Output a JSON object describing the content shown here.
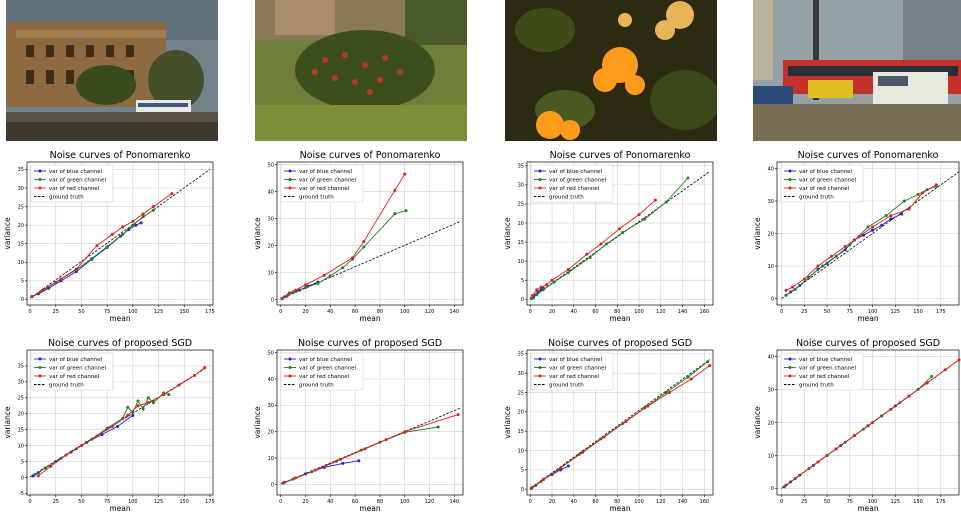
{
  "photos": [
    {
      "name": "photo-building",
      "description_colors": [
        "#6f7f86",
        "#8a6a3f",
        "#b08a55",
        "#3f3a2a"
      ]
    },
    {
      "name": "photo-flowerbed",
      "description_colors": [
        "#4f5a2a",
        "#7c8e3c",
        "#a63a2a",
        "#2f3418"
      ]
    },
    {
      "name": "photo-lantana",
      "description_colors": [
        "#2b2a12",
        "#ff9a1a",
        "#4f5f1f",
        "#e8b45a"
      ]
    },
    {
      "name": "photo-street",
      "description_colors": [
        "#8d9aa2",
        "#b8302a",
        "#e0e0d6",
        "#7a6f54"
      ]
    }
  ],
  "legend": {
    "blue": "var of blue channel",
    "green": "var of green channel",
    "red": "var of red channel",
    "gt": "ground truth"
  },
  "colors": {
    "blue": "#1f1fcc",
    "green": "#1f7f1f",
    "red": "#dd1f1f",
    "gt": "#000000",
    "grid": "#d0d0d0"
  },
  "chart_data": [
    {
      "type": "line",
      "title": "Noise curves of Ponomarenko",
      "xlabel": "mean",
      "ylabel": "variance",
      "xlim": [
        -3,
        178
      ],
      "ylim": [
        -1.5,
        37
      ],
      "xticks": [
        0,
        25,
        50,
        75,
        100,
        125,
        150,
        175
      ],
      "yticks": [
        0,
        5,
        10,
        15,
        20,
        25,
        30,
        35
      ],
      "series": [
        {
          "name": "var of blue channel",
          "color": "blue",
          "x": [
            2,
            8,
            18,
            30,
            45,
            60,
            75,
            88,
            96,
            103,
            108
          ],
          "y": [
            0.8,
            1.5,
            3.0,
            5.0,
            7.5,
            10.8,
            14.0,
            17.0,
            18.8,
            20.0,
            20.6
          ]
        },
        {
          "name": "var of green channel",
          "color": "green",
          "x": [
            2,
            10,
            25,
            45,
            60,
            75,
            90,
            100,
            110,
            120
          ],
          "y": [
            0.8,
            2.0,
            4.6,
            8.0,
            11.0,
            14.2,
            17.5,
            20.0,
            22.3,
            24.0
          ]
        },
        {
          "name": "var of red channel",
          "color": "red",
          "x": [
            2,
            12,
            30,
            45,
            65,
            80,
            90,
            100,
            110,
            120,
            138
          ],
          "y": [
            0.8,
            2.5,
            5.5,
            8.2,
            14.5,
            17.5,
            19.5,
            21.0,
            23.0,
            25.0,
            28.5
          ]
        }
      ],
      "ground_truth": {
        "x": [
          0,
          175
        ],
        "y": [
          0.3,
          35
        ]
      }
    },
    {
      "type": "line",
      "title": "Noise curves of Ponomarenko",
      "xlabel": "mean",
      "ylabel": "variance",
      "xlim": [
        -3,
        147
      ],
      "ylim": [
        -2,
        51
      ],
      "xticks": [
        0,
        20,
        40,
        60,
        80,
        100,
        120,
        140
      ],
      "yticks": [
        0,
        10,
        20,
        30,
        40,
        50
      ],
      "series": [
        {
          "name": "var of blue channel",
          "color": "blue",
          "x": [
            1,
            3,
            6,
            10,
            15,
            22,
            30
          ],
          "y": [
            0.3,
            1.0,
            1.8,
            2.6,
            3.5,
            5.0,
            6.5
          ]
        },
        {
          "name": "var of green channel",
          "color": "green",
          "x": [
            1,
            5,
            10,
            20,
            30,
            40,
            50,
            58,
            67,
            92,
            101
          ],
          "y": [
            0.3,
            1.2,
            2.8,
            4.5,
            6.0,
            8.8,
            11.8,
            15.0,
            19.5,
            31.8,
            33.0
          ]
        },
        {
          "name": "var of red channel",
          "color": "red",
          "x": [
            1,
            7,
            12,
            20,
            35,
            58,
            67,
            92,
            100
          ],
          "y": [
            0.5,
            2.5,
            3.5,
            5.5,
            9.0,
            15.5,
            21.5,
            40.5,
            46.5
          ]
        }
      ],
      "ground_truth": {
        "x": [
          0,
          145
        ],
        "y": [
          0.3,
          29
        ]
      }
    },
    {
      "type": "line",
      "title": "Noise curves of Ponomarenko",
      "xlabel": "mean",
      "ylabel": "variance",
      "xlim": [
        -3,
        168
      ],
      "ylim": [
        -1.5,
        36
      ],
      "xticks": [
        0,
        20,
        40,
        60,
        80,
        100,
        120,
        140,
        160
      ],
      "yticks": [
        0,
        5,
        10,
        15,
        20,
        25,
        30,
        35
      ],
      "series": [
        {
          "name": "var of blue channel",
          "color": "blue",
          "x": [
            1,
            3,
            5,
            7,
            10,
            12
          ],
          "y": [
            0.2,
            0.5,
            1.2,
            2.0,
            2.5,
            2.9
          ]
        },
        {
          "name": "var of green channel",
          "color": "green",
          "x": [
            1,
            6,
            12,
            22,
            35,
            55,
            70,
            85,
            105,
            125,
            145
          ],
          "y": [
            0.2,
            1.2,
            2.5,
            4.5,
            7.0,
            11.0,
            14.5,
            17.5,
            21.0,
            25.5,
            31.8
          ]
        },
        {
          "name": "var of red channel",
          "color": "red",
          "x": [
            2,
            6,
            10,
            15,
            20,
            35,
            52,
            65,
            82,
            100,
            115
          ],
          "y": [
            1.0,
            2.5,
            3.2,
            3.8,
            5.0,
            7.8,
            11.8,
            14.5,
            18.5,
            22.2,
            26.0
          ]
        }
      ],
      "ground_truth": {
        "x": [
          0,
          165
        ],
        "y": [
          0.2,
          33.5
        ]
      }
    },
    {
      "type": "line",
      "title": "Noise curves of Ponomarenko",
      "xlabel": "mean",
      "ylabel": "variance",
      "xlim": [
        -5,
        195
      ],
      "ylim": [
        -2,
        42
      ],
      "xticks": [
        0,
        25,
        50,
        75,
        100,
        125,
        150,
        175
      ],
      "yticks": [
        0,
        10,
        20,
        30,
        40
      ],
      "series": [
        {
          "name": "var of blue channel",
          "color": "blue",
          "x": [
            5,
            10,
            20,
            30,
            40,
            50,
            60,
            70,
            80,
            90,
            100,
            110,
            120,
            132
          ],
          "y": [
            1.0,
            2.0,
            4.0,
            6.5,
            9.0,
            10.8,
            13.0,
            15.0,
            18.0,
            19.5,
            21.0,
            22.5,
            24.5,
            26.0
          ]
        },
        {
          "name": "var of green channel",
          "color": "green",
          "x": [
            5,
            15,
            30,
            45,
            60,
            75,
            95,
            115,
            135,
            150,
            160,
            170
          ],
          "y": [
            1.0,
            2.8,
            6.5,
            10.0,
            13.0,
            16.5,
            22.0,
            25.5,
            30.0,
            32.0,
            33.5,
            34.5
          ]
        },
        {
          "name": "var of red channel",
          "color": "red",
          "x": [
            5,
            12,
            25,
            40,
            55,
            70,
            85,
            100,
            120,
            140,
            155,
            170
          ],
          "y": [
            2.5,
            3.5,
            6.0,
            10.0,
            13.0,
            16.0,
            19.0,
            22.0,
            25.5,
            27.5,
            32.5,
            35.0
          ]
        }
      ],
      "ground_truth": {
        "x": [
          0,
          195
        ],
        "y": [
          0,
          39
        ]
      }
    },
    {
      "type": "line",
      "title": "Noise curves of proposed SGD",
      "xlabel": "mean",
      "ylabel": "variance",
      "xlim": [
        -3,
        178
      ],
      "ylim": [
        -5.5,
        40
      ],
      "xticks": [
        0,
        25,
        50,
        75,
        100,
        125,
        150,
        175
      ],
      "yticks": [
        -5,
        0,
        5,
        10,
        15,
        20,
        25,
        30,
        35
      ],
      "series": [
        {
          "name": "var of blue channel",
          "color": "blue",
          "x": [
            3,
            8,
            15,
            25,
            40,
            55,
            70,
            85,
            100
          ],
          "y": [
            0.5,
            1.5,
            3.0,
            5.0,
            8.0,
            11.0,
            13.5,
            16.0,
            19.5
          ]
        },
        {
          "name": "var of green channel",
          "color": "green",
          "x": [
            5,
            15,
            30,
            45,
            60,
            75,
            90,
            95,
            100,
            105,
            110,
            115,
            120,
            130,
            135
          ],
          "y": [
            1.0,
            3.0,
            6.0,
            9.0,
            12.0,
            15.5,
            18.5,
            22.0,
            20.5,
            24.0,
            21.5,
            25.0,
            23.5,
            26.5,
            26.0
          ]
        },
        {
          "name": "var of red channel",
          "color": "red",
          "x": [
            8,
            20,
            35,
            50,
            65,
            80,
            95,
            105,
            115,
            130,
            145,
            160,
            170
          ],
          "y": [
            0.5,
            3.5,
            7.0,
            10.0,
            13.0,
            16.0,
            19.5,
            22.5,
            23.5,
            26.0,
            29.0,
            32.0,
            34.5
          ]
        }
      ],
      "ground_truth": {
        "x": [
          0,
          172
        ],
        "y": [
          0.2,
          34.5
        ]
      }
    },
    {
      "type": "line",
      "title": "Noise curves of proposed SGD",
      "xlabel": "mean",
      "ylabel": "variance",
      "xlim": [
        -3,
        147
      ],
      "ylim": [
        -4,
        51
      ],
      "xticks": [
        0,
        20,
        40,
        60,
        80,
        100,
        120,
        140
      ],
      "yticks": [
        0,
        10,
        20,
        30,
        40,
        50
      ],
      "series": [
        {
          "name": "var of blue channel",
          "color": "blue",
          "x": [
            2,
            10,
            20,
            35,
            50,
            63
          ],
          "y": [
            0.5,
            2.0,
            4.0,
            6.5,
            8.0,
            9.0
          ]
        },
        {
          "name": "var of green channel",
          "color": "green",
          "x": [
            2,
            10,
            25,
            45,
            65,
            80,
            100,
            127
          ],
          "y": [
            0.5,
            2.0,
            4.8,
            8.8,
            13.0,
            16.0,
            19.8,
            21.8
          ]
        },
        {
          "name": "var of red channel",
          "color": "red",
          "x": [
            3,
            12,
            28,
            48,
            68,
            85,
            100,
            143
          ],
          "y": [
            0.8,
            2.5,
            5.5,
            9.5,
            13.5,
            17.0,
            20.0,
            26.5
          ]
        }
      ],
      "ground_truth": {
        "x": [
          0,
          145
        ],
        "y": [
          0.2,
          29
        ]
      }
    },
    {
      "type": "line",
      "title": "Noise curves of proposed SGD",
      "xlabel": "mean",
      "ylabel": "variance",
      "xlim": [
        -3,
        168
      ],
      "ylim": [
        -1.5,
        36
      ],
      "xticks": [
        0,
        20,
        40,
        60,
        80,
        100,
        120,
        140,
        160
      ],
      "yticks": [
        0,
        5,
        10,
        15,
        20,
        25,
        30,
        35
      ],
      "series": [
        {
          "name": "var of blue channel",
          "color": "blue",
          "x": [
            1,
            5,
            12,
            20,
            28,
            35
          ],
          "y": [
            0.2,
            1.0,
            2.5,
            3.8,
            5.0,
            6.0
          ]
        },
        {
          "name": "var of green channel",
          "color": "green",
          "x": [
            1,
            10,
            25,
            45,
            65,
            85,
            105,
            125,
            145,
            163
          ],
          "y": [
            0.2,
            2.0,
            5.0,
            9.0,
            13.0,
            17.0,
            21.0,
            25.0,
            29.0,
            33.0
          ]
        },
        {
          "name": "var of red channel",
          "color": "red",
          "x": [
            2,
            12,
            28,
            48,
            68,
            88,
            108,
            128,
            148,
            165
          ],
          "y": [
            0.5,
            2.5,
            5.5,
            9.5,
            13.5,
            17.5,
            21.5,
            25.0,
            28.5,
            32.0
          ]
        }
      ],
      "ground_truth": {
        "x": [
          0,
          165
        ],
        "y": [
          0.2,
          33.5
        ]
      }
    },
    {
      "type": "line",
      "title": "Noise curves of proposed SGD",
      "xlabel": "mean",
      "ylabel": "variance",
      "xlim": [
        -5,
        195
      ],
      "ylim": [
        -2,
        42
      ],
      "xticks": [
        0,
        25,
        50,
        75,
        100,
        125,
        150,
        175
      ],
      "yticks": [
        0,
        10,
        20,
        30,
        40
      ],
      "series": [
        {
          "name": "var of blue channel",
          "color": "blue",
          "x": [
            3,
            10,
            20,
            35,
            50,
            65,
            80,
            95,
            110,
            125,
            140
          ],
          "y": [
            0.5,
            2.0,
            4.0,
            7.0,
            10.0,
            13.0,
            16.0,
            19.0,
            22.0,
            25.0,
            28.0
          ]
        },
        {
          "name": "var of green channel",
          "color": "green",
          "x": [
            3,
            15,
            30,
            50,
            70,
            90,
            110,
            130,
            150,
            165
          ],
          "y": [
            0.5,
            3.0,
            6.0,
            10.0,
            14.0,
            18.0,
            22.0,
            26.0,
            30.0,
            34.0
          ]
        },
        {
          "name": "var of red channel",
          "color": "red",
          "x": [
            5,
            20,
            40,
            60,
            80,
            100,
            120,
            140,
            160,
            180,
            195
          ],
          "y": [
            1.0,
            4.0,
            8.0,
            12.0,
            16.0,
            20.0,
            24.0,
            28.0,
            32.0,
            36.0,
            39.0
          ]
        }
      ],
      "ground_truth": {
        "x": [
          0,
          195
        ],
        "y": [
          0,
          39
        ]
      }
    }
  ]
}
